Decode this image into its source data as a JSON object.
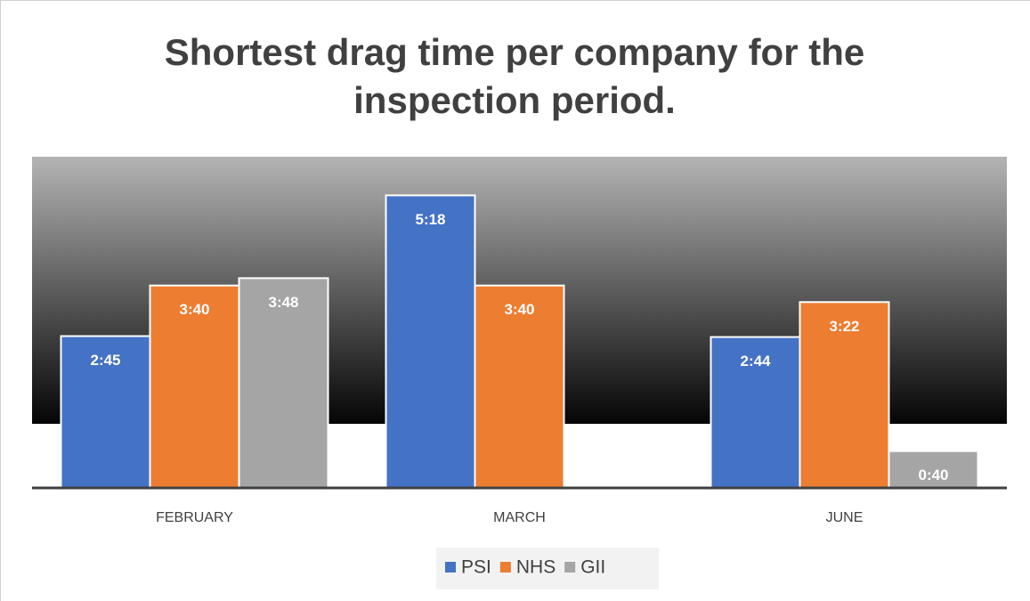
{
  "chart_data": {
    "type": "bar",
    "title": "Shortest drag time per company for the inspection period.",
    "categories": [
      "FEBRUARY",
      "MARCH",
      "JUNE"
    ],
    "series": [
      {
        "name": "PSI",
        "color": "#4472c4",
        "values": [
          165,
          318,
          164
        ],
        "value_labels": [
          "2:45",
          "5:18",
          "2:44"
        ]
      },
      {
        "name": "NHS",
        "color": "#ed7d31",
        "values": [
          220,
          220,
          202
        ],
        "value_labels": [
          "3:40",
          "3:40",
          "3:22"
        ]
      },
      {
        "name": "GII",
        "color": "#a5a5a5",
        "values": [
          228,
          null,
          40
        ],
        "value_labels": [
          "3:48",
          null,
          "0:40"
        ]
      }
    ],
    "ylim": [
      0,
      360
    ]
  }
}
